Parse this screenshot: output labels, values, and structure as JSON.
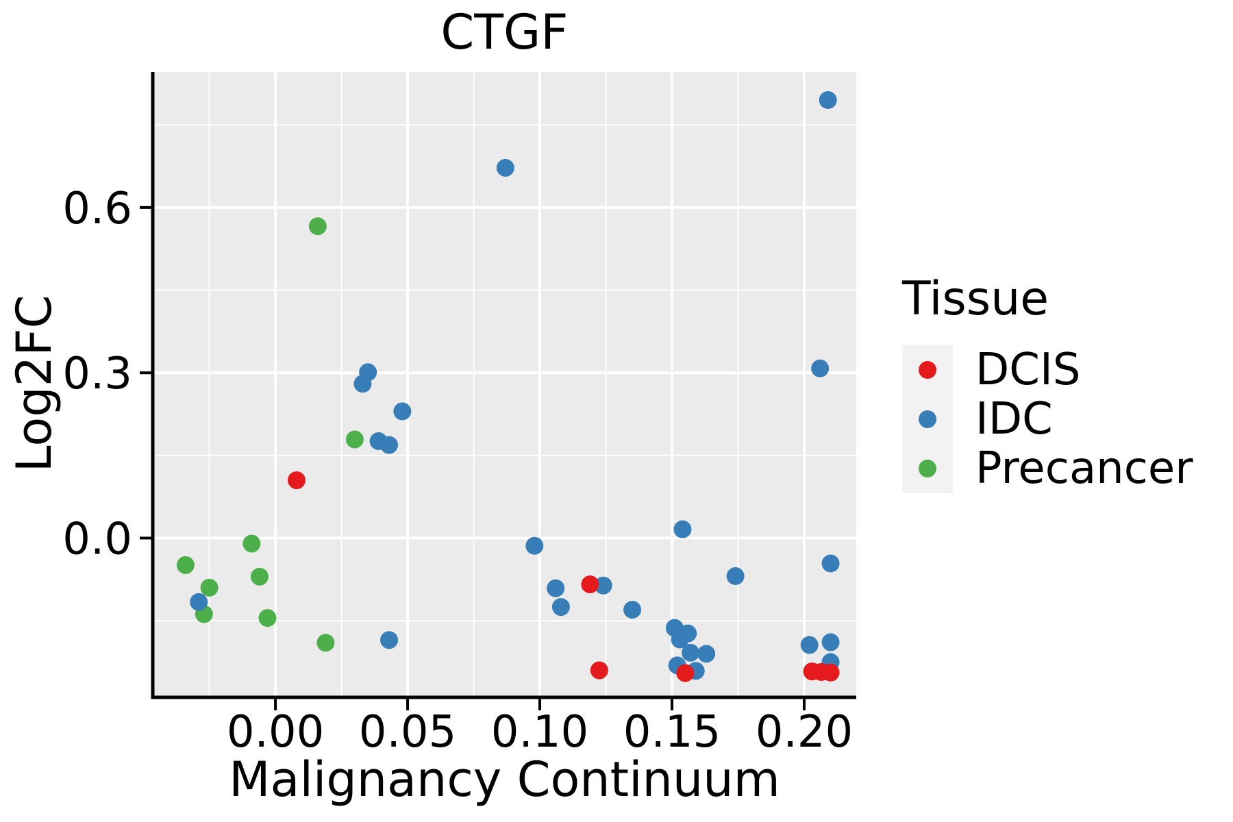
{
  "page": {
    "background_color": "#ffffff",
    "text_color": "#000000"
  },
  "chart_data": {
    "type": "scatter",
    "title": "CTGF",
    "xlabel": "Malignancy Continuum",
    "ylabel": "Log2FC",
    "xlim": [
      -0.0464,
      0.2197
    ],
    "ylim": [
      -0.289,
      0.846
    ],
    "grid": true,
    "panel_background": "#EBEBEB",
    "grid_color": "#FFFFFF",
    "axis_color": "#000000",
    "point_radius_px": 13,
    "x_major_ticks": [
      {
        "value": 0.0,
        "label": "0.00"
      },
      {
        "value": 0.05,
        "label": "0.05"
      },
      {
        "value": 0.1,
        "label": "0.10"
      },
      {
        "value": 0.15,
        "label": "0.15"
      },
      {
        "value": 0.2,
        "label": "0.20"
      }
    ],
    "x_minor_ticks": [
      -0.025,
      0.025,
      0.075,
      0.125,
      0.175
    ],
    "y_major_ticks": [
      {
        "value": 0.0,
        "label": "0.0"
      },
      {
        "value": 0.3,
        "label": "0.3"
      },
      {
        "value": 0.6,
        "label": "0.6"
      }
    ],
    "y_minor_ticks": [
      -0.15,
      0.15,
      0.45,
      0.75
    ],
    "legend": {
      "title": "Tissue",
      "position": "right",
      "key_background": "#F2F2F2",
      "entries": [
        {
          "label": "DCIS",
          "color": "#E41A1C"
        },
        {
          "label": "IDC",
          "color": "#377EB8"
        },
        {
          "label": "Precancer",
          "color": "#4DAF4A"
        }
      ]
    },
    "draw_order": [
      "Precancer",
      "IDC",
      "DCIS"
    ],
    "series": [
      {
        "name": "Precancer",
        "color": "#4DAF4A",
        "points": [
          [
            0.016,
            0.566
          ],
          [
            0.03,
            0.179
          ],
          [
            -0.009,
            -0.01
          ],
          [
            -0.034,
            -0.049
          ],
          [
            -0.006,
            -0.07
          ],
          [
            -0.025,
            -0.09
          ],
          [
            -0.027,
            -0.138
          ],
          [
            -0.003,
            -0.145
          ],
          [
            0.019,
            -0.19
          ]
        ]
      },
      {
        "name": "IDC",
        "color": "#377EB8",
        "points": [
          [
            0.087,
            0.672
          ],
          [
            0.209,
            0.795
          ],
          [
            0.035,
            0.301
          ],
          [
            0.033,
            0.28
          ],
          [
            0.048,
            0.23
          ],
          [
            0.039,
            0.176
          ],
          [
            0.043,
            0.169
          ],
          [
            0.206,
            0.308
          ],
          [
            0.098,
            -0.014
          ],
          [
            0.154,
            0.016
          ],
          [
            -0.029,
            -0.116
          ],
          [
            0.106,
            -0.091
          ],
          [
            0.124,
            -0.086
          ],
          [
            0.108,
            -0.125
          ],
          [
            0.135,
            -0.13
          ],
          [
            0.174,
            -0.069
          ],
          [
            0.21,
            -0.046
          ],
          [
            0.043,
            -0.185
          ],
          [
            0.151,
            -0.163
          ],
          [
            0.156,
            -0.173
          ],
          [
            0.153,
            -0.184
          ],
          [
            0.157,
            -0.208
          ],
          [
            0.163,
            -0.21
          ],
          [
            0.152,
            -0.231
          ],
          [
            0.159,
            -0.241
          ],
          [
            0.202,
            -0.194
          ],
          [
            0.21,
            -0.189
          ],
          [
            0.21,
            -0.225
          ]
        ]
      },
      {
        "name": "DCIS",
        "color": "#E41A1C",
        "points": [
          [
            0.008,
            0.105
          ],
          [
            0.119,
            -0.084
          ],
          [
            0.1225,
            -0.24
          ],
          [
            0.155,
            -0.245
          ],
          [
            0.203,
            -0.242
          ],
          [
            0.2065,
            -0.243
          ],
          [
            0.21,
            -0.244
          ]
        ]
      }
    ]
  }
}
